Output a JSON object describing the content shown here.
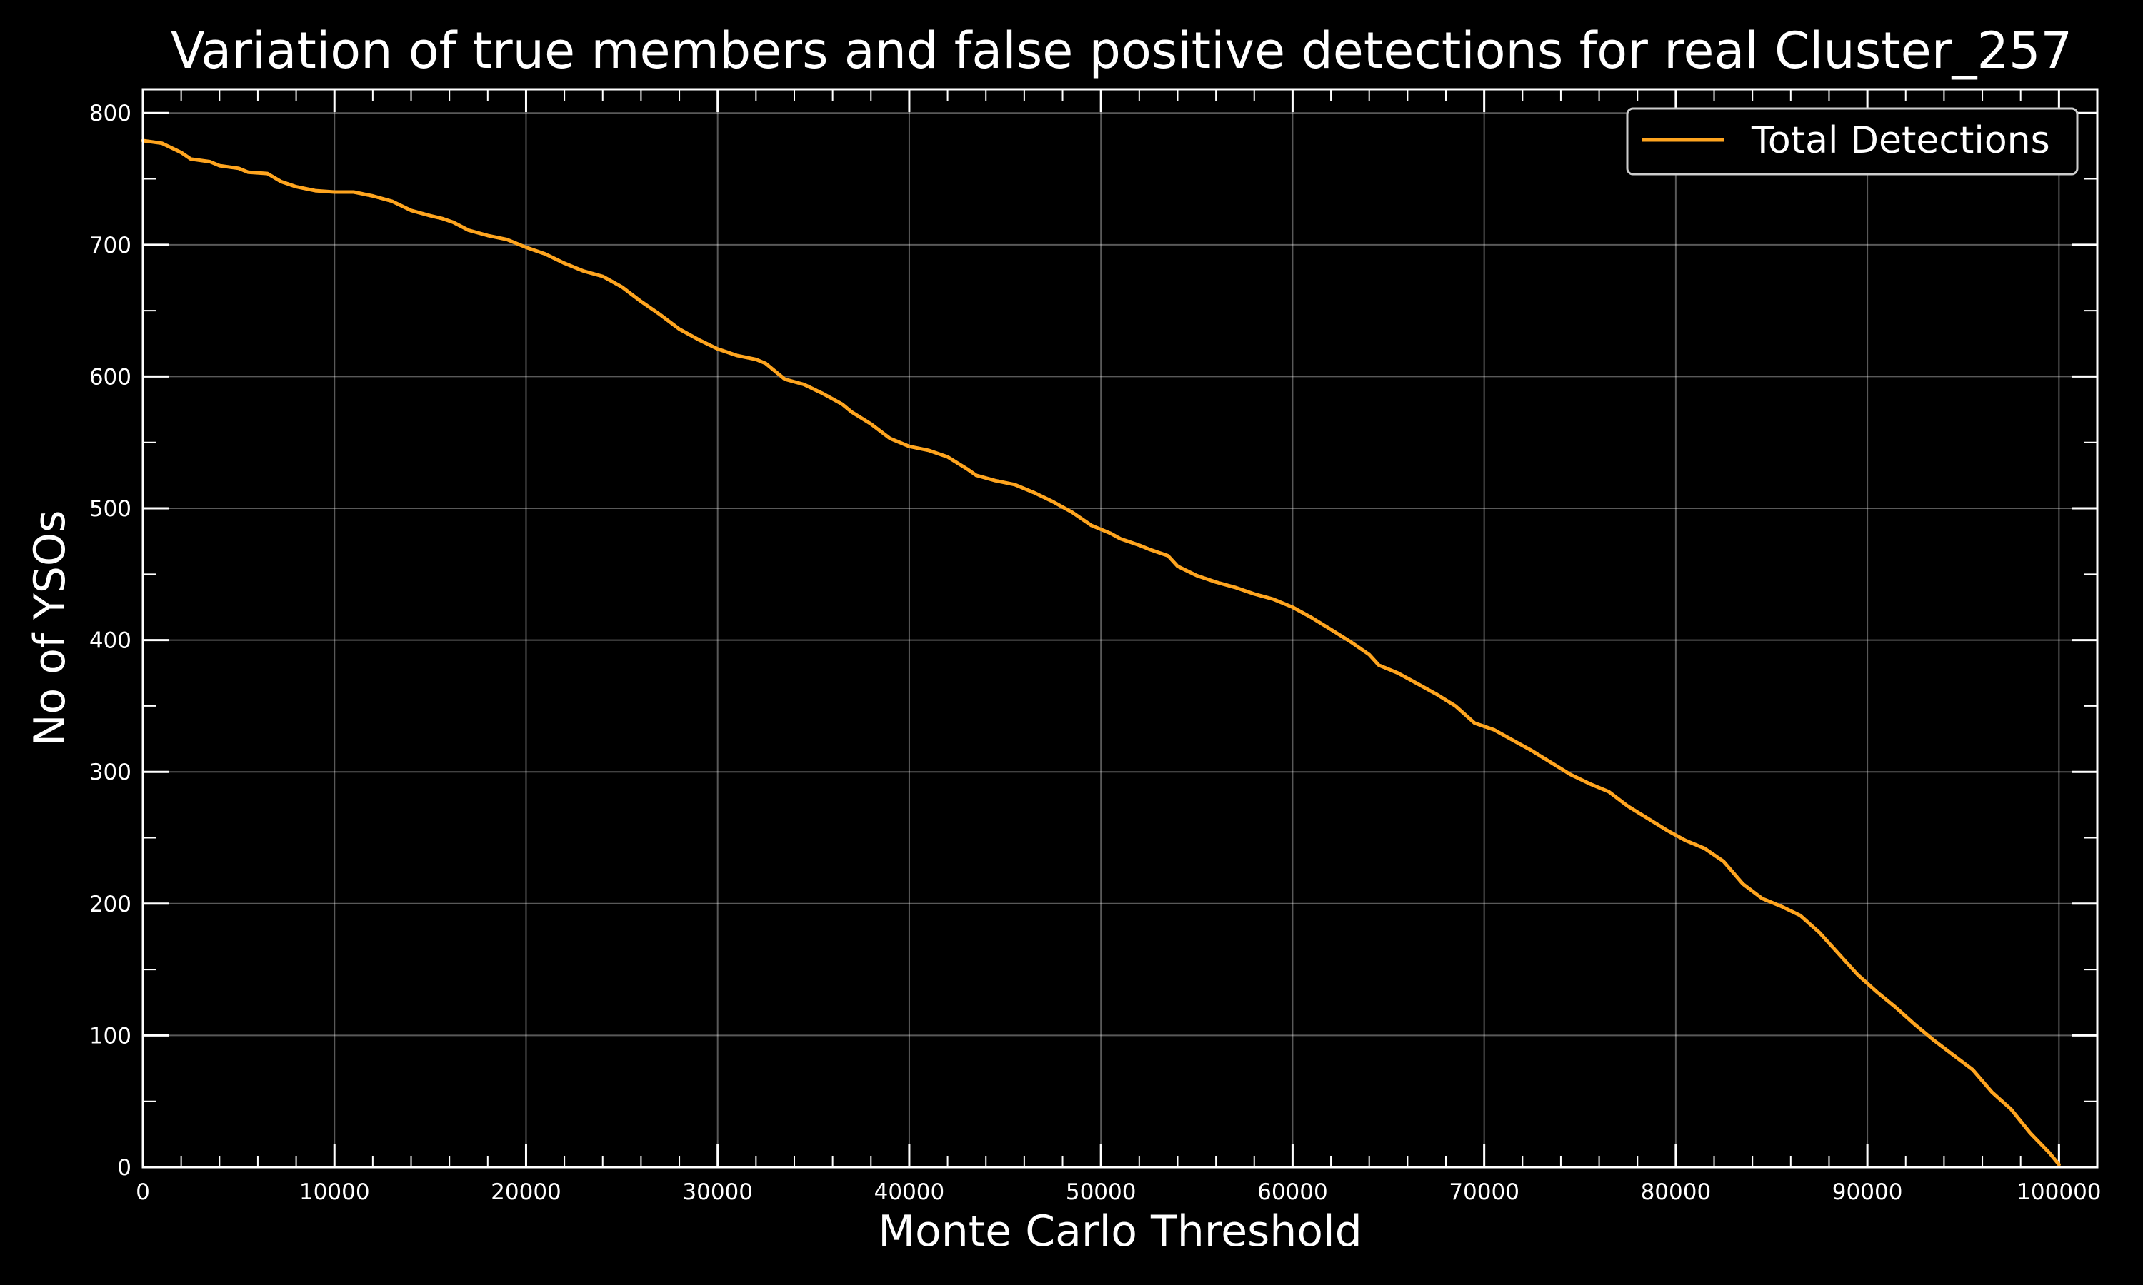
{
  "chart_data": {
    "type": "line",
    "title": "Variation of true members and false positive detections for real Cluster_257",
    "xlabel": "Monte Carlo Threshold",
    "ylabel": "No of YSOs",
    "xlim": [
      0,
      102000
    ],
    "ylim": [
      0,
      818
    ],
    "x_ticks": [
      0,
      10000,
      20000,
      30000,
      40000,
      50000,
      60000,
      70000,
      80000,
      90000,
      100000
    ],
    "y_ticks": [
      0,
      100,
      200,
      300,
      400,
      500,
      600,
      700,
      800
    ],
    "grid": true,
    "legend_position": "top-right",
    "series": [
      {
        "name": "Total Detections",
        "color": "#ffa51f",
        "x": [
          0,
          1000,
          2000,
          2500,
          3500,
          4000,
          5000,
          5500,
          6500,
          7200,
          8000,
          9000,
          10000,
          11000,
          12000,
          13000,
          14000,
          15000,
          15600,
          16200,
          17000,
          18000,
          19000,
          20000,
          21000,
          22000,
          23000,
          24000,
          25000,
          26000,
          27000,
          28000,
          29000,
          30000,
          31000,
          32000,
          32500,
          33500,
          34500,
          35500,
          36500,
          37000,
          38000,
          39000,
          40000,
          41000,
          42000,
          43000,
          43500,
          44500,
          45500,
          46500,
          47500,
          48500,
          49500,
          50500,
          51000,
          52000,
          52500,
          53500,
          54000,
          55000,
          56000,
          57000,
          58000,
          59000,
          60000,
          61000,
          62000,
          63000,
          64000,
          64500,
          65500,
          66500,
          67500,
          68500,
          69500,
          70500,
          71500,
          72500,
          73500,
          74500,
          75500,
          76500,
          77500,
          78500,
          79500,
          80500,
          81500,
          82500,
          83500,
          84500,
          85500,
          86500,
          87500,
          88500,
          89500,
          90500,
          91500,
          92500,
          93500,
          94500,
          95500,
          96500,
          97500,
          98500,
          99500,
          100000
        ],
        "values": [
          779,
          777,
          770,
          765,
          763,
          760,
          758,
          755,
          754,
          748,
          744,
          741,
          740,
          740,
          737,
          733,
          726,
          722,
          720,
          717,
          711,
          707,
          704,
          698,
          693,
          686,
          680,
          676,
          668,
          657,
          647,
          636,
          628,
          621,
          616,
          613,
          610,
          598,
          594,
          587,
          579,
          573,
          564,
          553,
          547,
          544,
          539,
          530,
          525,
          521,
          518,
          512,
          505,
          497,
          487,
          481,
          477,
          472,
          469,
          464,
          456,
          449,
          444,
          440,
          435,
          431,
          425,
          417,
          408,
          399,
          389,
          381,
          375,
          367,
          359,
          350,
          337,
          332,
          324,
          316,
          307,
          298,
          291,
          285,
          274,
          265,
          256,
          248,
          242,
          232,
          215,
          204,
          198,
          191,
          178,
          162,
          146,
          133,
          121,
          108,
          96,
          85,
          74,
          57,
          44,
          26,
          11,
          2
        ]
      }
    ]
  }
}
